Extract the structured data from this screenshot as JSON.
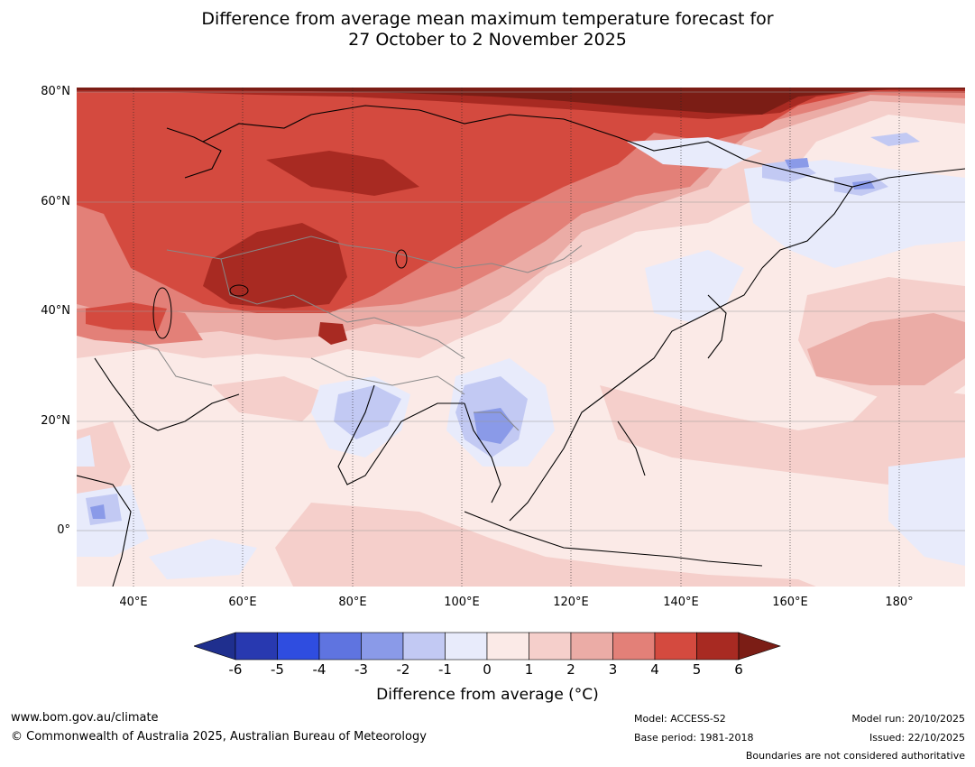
{
  "title": {
    "line1": "Difference from average mean maximum temperature forecast for",
    "line2": "27 October to 2 November 2025"
  },
  "map": {
    "lat_labels": [
      "80°N",
      "60°N",
      "40°N",
      "20°N",
      "0°"
    ],
    "lon_labels": [
      "40°E",
      "60°E",
      "80°E",
      "100°E",
      "120°E",
      "140°E",
      "160°E",
      "180°"
    ],
    "region": "Asia"
  },
  "colorbar": {
    "ticks": [
      "-6",
      "-5",
      "-4",
      "-3",
      "-2",
      "-1",
      "0",
      "1",
      "2",
      "3",
      "4",
      "5",
      "6"
    ],
    "colors": [
      "#1f2f8e",
      "#2839b0",
      "#2f4de0",
      "#5f74e0",
      "#8a9ae8",
      "#c2c9f3",
      "#e8ebfb",
      "#fbeae7",
      "#f5cfcb",
      "#ebaca6",
      "#e38078",
      "#d44a3f",
      "#a82a22",
      "#7b1d15"
    ],
    "label": "Difference from average (°C)"
  },
  "footer": {
    "url": "www.bom.gov.au/climate",
    "copyright": "© Commonwealth of Australia 2025, Australian Bureau of Meteorology",
    "model": "Model: ACCESS-S2",
    "base_period": "Base period: 1981-2018",
    "model_run": "Model run: 20/10/2025",
    "issued": "Issued: 22/10/2025",
    "disclaimer": "Boundaries are not considered authoritative"
  }
}
